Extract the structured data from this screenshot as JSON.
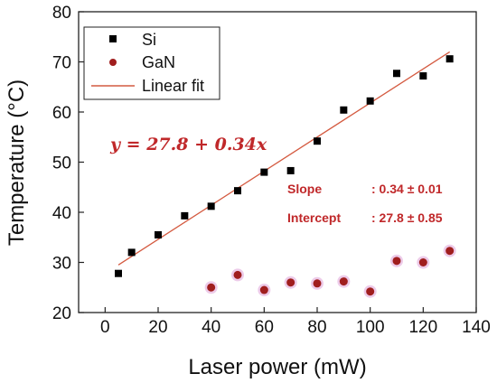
{
  "chart_data": {
    "type": "scatter",
    "xlabel": "Laser power (mW)",
    "ylabel": "Temperature (°C)",
    "xlim": [
      -10,
      140
    ],
    "ylim": [
      20,
      80
    ],
    "x_ticks": [
      0,
      20,
      40,
      60,
      80,
      100,
      120,
      140
    ],
    "y_ticks": [
      20,
      30,
      40,
      50,
      60,
      70,
      80
    ],
    "grid": false,
    "legend_position": "top-left",
    "series": [
      {
        "name": "Si",
        "marker": "square",
        "color": "#000000",
        "x": [
          5,
          10,
          20,
          30,
          40,
          50,
          60,
          70,
          80,
          90,
          100,
          110,
          120,
          130
        ],
        "y": [
          27.8,
          32.0,
          35.5,
          39.3,
          41.2,
          44.3,
          48.0,
          48.3,
          54.2,
          60.4,
          62.2,
          67.7,
          67.2,
          70.6
        ]
      },
      {
        "name": "GaN",
        "marker": "circle",
        "color": "#a01e1e",
        "x": [
          40,
          50,
          60,
          70,
          80,
          90,
          100,
          110,
          120,
          130
        ],
        "y": [
          25.0,
          27.5,
          24.5,
          26.0,
          25.8,
          26.2,
          24.2,
          30.3,
          30.0,
          32.3
        ]
      }
    ],
    "fit": {
      "name": "Linear fit",
      "color": "#d45a40",
      "intercept": 27.8,
      "slope": 0.34,
      "x_range": [
        5,
        130
      ]
    },
    "annotations": {
      "equation": "y = 27.8 + 0.34x",
      "slope_label": "Slope",
      "slope_value": ": 0.34 ± 0.01",
      "intercept_label": "Intercept",
      "intercept_value": ": 27.8 ± 0.85",
      "color": "#c0282a"
    }
  }
}
